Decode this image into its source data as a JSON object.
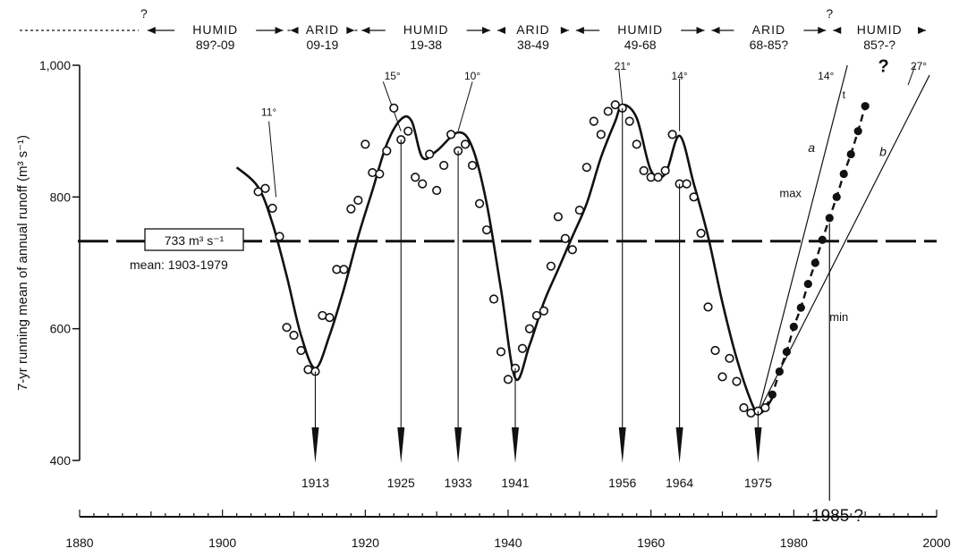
{
  "chart_data": {
    "type": "scatter",
    "title": "",
    "ylabel": "7-yr running mean of annual runoff (m³ s⁻¹)",
    "xlabel": "",
    "xlim": [
      1880,
      2000
    ],
    "ylim": [
      400,
      1000
    ],
    "x_ticks": [
      1880,
      1900,
      1920,
      1940,
      1960,
      1980,
      2000
    ],
    "y_ticks": [
      400,
      600,
      800,
      1000
    ],
    "y_tick_labels": [
      "400",
      "600",
      "800",
      "1,000"
    ],
    "grid": false,
    "legend": "none",
    "mean_line": {
      "value": 733,
      "label": "733  m³ s⁻¹",
      "sublabel": "mean: 1903-1979"
    },
    "periods": [
      {
        "kind": "?",
        "years": "",
        "from": 1880,
        "to": 1889
      },
      {
        "kind": "HUMID",
        "years": "89?-09",
        "from": 1889,
        "to": 1909
      },
      {
        "kind": "ARID",
        "years": "09-19",
        "from": 1909,
        "to": 1919
      },
      {
        "kind": "HUMID",
        "years": "19-38",
        "from": 1919,
        "to": 1938
      },
      {
        "kind": "ARID",
        "years": "38-49",
        "from": 1938,
        "to": 1949
      },
      {
        "kind": "HUMID",
        "years": "49-68",
        "from": 1949,
        "to": 1968
      },
      {
        "kind": "ARID",
        "years": "68-85?",
        "from": 1968,
        "to": 1985
      },
      {
        "kind": "HUMID",
        "years": "85?-?",
        "from": 1985,
        "to": 1999
      }
    ],
    "boundary_marks": [
      {
        "x": 1889,
        "label": "?"
      },
      {
        "x": 1985,
        "label": "?"
      }
    ],
    "turning_points": [
      {
        "year": 1913,
        "label": "1913"
      },
      {
        "year": 1925,
        "label": "1925"
      },
      {
        "year": 1933,
        "label": "1933"
      },
      {
        "year": 1941,
        "label": "1941"
      },
      {
        "year": 1956,
        "label": "1956"
      },
      {
        "year": 1964,
        "label": "1964"
      },
      {
        "year": 1975,
        "label": "1975"
      }
    ],
    "forecast_label": "1985 ?",
    "forecast_year": 1985,
    "angle_labels": [
      {
        "label": "11°",
        "x": 1906.5,
        "y": 930
      },
      {
        "label": "15°",
        "x": 1923.8,
        "y": 985
      },
      {
        "label": "10°",
        "x": 1935,
        "y": 985
      },
      {
        "label": "21°",
        "x": 1956,
        "y": 1000
      },
      {
        "label": "14°",
        "x": 1964,
        "y": 985
      },
      {
        "label": "14°",
        "x": 1984.5,
        "y": 985
      },
      {
        "label": "27°",
        "x": 1997.5,
        "y": 1000
      }
    ],
    "projection_labels": {
      "a": "a",
      "b": "b",
      "max": "max",
      "min": "min",
      "q": "?",
      "t": "t"
    },
    "series": [
      {
        "kind": "observed",
        "x": [
          1905,
          1906,
          1907,
          1908,
          1909,
          1910,
          1911,
          1912,
          1913,
          1914,
          1915,
          1916,
          1917,
          1918,
          1919,
          1920,
          1921,
          1922,
          1923,
          1924,
          1925,
          1926,
          1927,
          1928,
          1929,
          1930,
          1931,
          1932,
          1933,
          1934,
          1935,
          1936,
          1937,
          1938,
          1939,
          1940,
          1941,
          1942,
          1943,
          1944,
          1945,
          1946,
          1947,
          1948,
          1949,
          1950,
          1951,
          1952,
          1953,
          1954,
          1955,
          1956,
          1957,
          1958,
          1959,
          1960,
          1961,
          1962,
          1963,
          1964,
          1965,
          1966,
          1967,
          1968,
          1969,
          1970,
          1971,
          1972,
          1973,
          1974,
          1975,
          1976
        ],
        "y": [
          808,
          813,
          783,
          740,
          602,
          590,
          567,
          538,
          535,
          620,
          617,
          690,
          690,
          782,
          795,
          880,
          837,
          835,
          870,
          935,
          887,
          900,
          830,
          820,
          865,
          810,
          848,
          895,
          870,
          880,
          848,
          790,
          750,
          645,
          565,
          523,
          540,
          570,
          600,
          620,
          627,
          695,
          770,
          737,
          720,
          780,
          845,
          915,
          895,
          930,
          940,
          935,
          915,
          880,
          840,
          830,
          830,
          840,
          895,
          820,
          820,
          800,
          745,
          633,
          567,
          527,
          555,
          520,
          480,
          472,
          475,
          480
        ]
      },
      {
        "kind": "projected",
        "x": [
          1977,
          1978,
          1979,
          1980,
          1981,
          1982,
          1983,
          1984,
          1985,
          1986,
          1987,
          1988,
          1989,
          1990
        ],
        "y": [
          500,
          535,
          565,
          603,
          632,
          668,
          700,
          735,
          768,
          800,
          835,
          865,
          900,
          938
        ]
      }
    ],
    "smooth_curve": {
      "x": [
        1902,
        1905,
        1907,
        1909,
        1911,
        1913,
        1915,
        1917,
        1919,
        1921,
        1923,
        1925,
        1926.5,
        1928,
        1930,
        1933,
        1935,
        1937,
        1939,
        1941,
        1943,
        1945,
        1947,
        1949,
        1951,
        1953,
        1955,
        1956,
        1958,
        1960,
        1962,
        1964,
        1966,
        1968,
        1970,
        1972,
        1974,
        1975,
        1976,
        1977
      ],
      "y": [
        845,
        815,
        760,
        680,
        590,
        540,
        590,
        660,
        740,
        810,
        880,
        918,
        915,
        860,
        870,
        898,
        875,
        790,
        660,
        525,
        575,
        640,
        690,
        740,
        790,
        860,
        915,
        940,
        920,
        840,
        835,
        893,
        820,
        740,
        640,
        555,
        490,
        472,
        478,
        495
      ]
    }
  }
}
